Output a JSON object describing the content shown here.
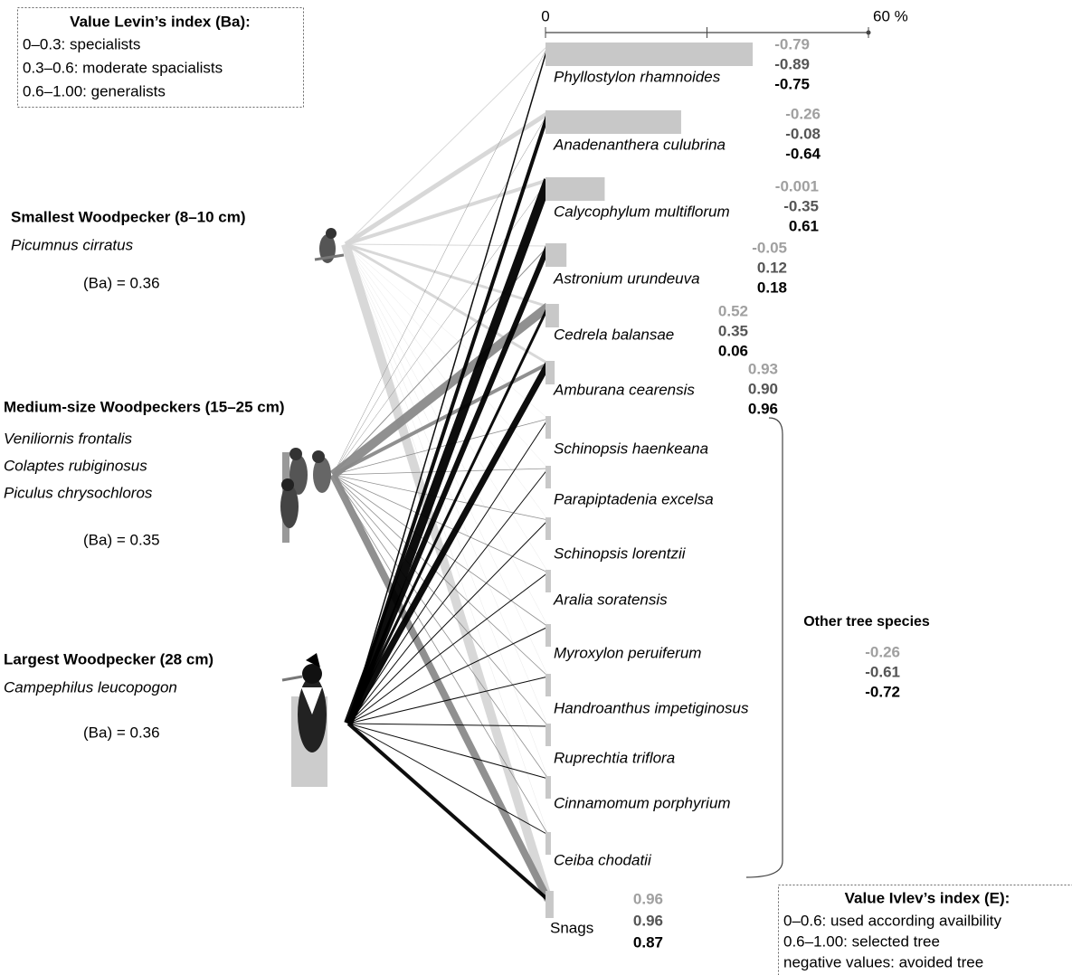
{
  "levin_legend": {
    "title": "Value Levin’s index (Ba):",
    "lines": [
      "0–0.3: specialists",
      "0.3–0.6: moderate spacialists",
      "0.6–1.00: generalists"
    ]
  },
  "ivlev_legend": {
    "title": "Value Ivlev’s index (E):",
    "lines": [
      "0–0.6: used according availbility",
      "0.6–1.00: selected tree",
      "negative values: avoided tree"
    ]
  },
  "axis": {
    "min": 0,
    "max": 60,
    "ticks": [
      0,
      {
        "value": 30,
        "label": null
      },
      {
        "value": 60,
        "label": "60 %"
      }
    ]
  },
  "woodpeckers": [
    {
      "heading": "Smallest Woodpecker (8–10 cm)",
      "species": [
        "Picumnus cirratus"
      ],
      "ba": "(Ba) = 0.36",
      "color": "#d6d6d6",
      "use": [
        1,
        5,
        4,
        1,
        3,
        3,
        0.3,
        0.3,
        0.3,
        0.3,
        0.3,
        0.3,
        0.3,
        0.3,
        0.3,
        10
      ]
    },
    {
      "heading": "Medium-size Woodpeckers (15–25 cm)",
      "species": [
        "Veniliornis frontalis",
        "Colaptes rubiginosus",
        "Piculus chrysochloros"
      ],
      "ba": "(Ba) = 0.35",
      "color": "#8a8a8a",
      "use": [
        0.5,
        0.5,
        0.5,
        1,
        10,
        4,
        0.8,
        0.8,
        0.8,
        0.8,
        0.8,
        0.8,
        0.8,
        0.8,
        0.8,
        8
      ]
    },
    {
      "heading": "Largest Woodpecker (28 cm)",
      "species": [
        "Campephilus leucopogon"
      ],
      "ba": "(Ba) = 0.36",
      "color": "#000000",
      "use": [
        1.5,
        4,
        10,
        6,
        3,
        7,
        1,
        1,
        1,
        1,
        1,
        1,
        1,
        1,
        1,
        4
      ]
    }
  ],
  "ivlev_colors": [
    "#a0a0a0",
    "#555555",
    "#000000"
  ],
  "trees": [
    {
      "name": "Phyllostylon rhamnoides",
      "use_pct": 38.5,
      "ivlev": [
        "-0.79",
        "-0.89",
        "-0.75"
      ]
    },
    {
      "name": "Anadenanthera culubrina",
      "use_pct": 25.2,
      "ivlev": [
        "-0.26",
        "-0.08",
        "-0.64"
      ]
    },
    {
      "name": "Calycophylum multiflorum",
      "use_pct": 11,
      "ivlev": [
        "-0.001",
        "-0.35",
        "0.61"
      ]
    },
    {
      "name": "Astronium urundeuva",
      "use_pct": 3.9,
      "ivlev": [
        "-0.05",
        "0.12",
        "0.18"
      ]
    },
    {
      "name": "Cedrela balansae",
      "use_pct": 2.5,
      "ivlev": [
        "0.52",
        "0.35",
        "0.06"
      ]
    },
    {
      "name": "Amburana cearensis",
      "use_pct": 1.7,
      "ivlev": [
        "0.93",
        "0.90",
        "0.96"
      ]
    }
  ],
  "other_trees": {
    "label": "Other tree species",
    "ivlev": [
      "-0.26",
      "-0.61",
      "-0.72"
    ],
    "names": [
      "Schinopsis haenkeana",
      "Parapiptadenia excelsa",
      "Schinopsis lorentzii",
      "Aralia soratensis",
      "Myroxylon peruiferum",
      "Handroanthus impetiginosus",
      "Ruprechtia triflora",
      "Cinnamomum porphyrium",
      "Ceiba chodatii"
    ],
    "use_pct": [
      1,
      1,
      1,
      1,
      1,
      1,
      1,
      1,
      1
    ]
  },
  "snags": {
    "name": "Snags",
    "use_pct": 1.5,
    "ivlev": [
      "0.96",
      "0.96",
      "0.87"
    ]
  }
}
